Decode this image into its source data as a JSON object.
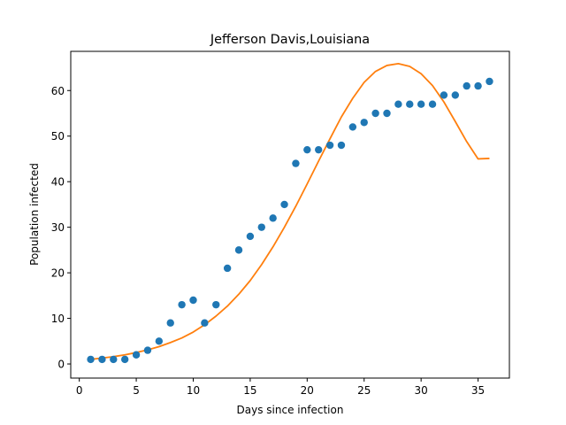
{
  "chart_data": {
    "type": "scatter",
    "title": "Jefferson Davis,Louisiana",
    "xlabel": "Days since infection",
    "ylabel": "Population infected",
    "xlim": [
      -0.75,
      37.75
    ],
    "ylim": [
      -3.1,
      68.6
    ],
    "xticks": [
      0,
      5,
      10,
      15,
      20,
      25,
      30,
      35
    ],
    "yticks": [
      0,
      10,
      20,
      30,
      40,
      50,
      60
    ],
    "grid": false,
    "series": [
      {
        "kind": "scatter",
        "color": "#1f77b4",
        "x": [
          1,
          2,
          3,
          4,
          5,
          6,
          7,
          8,
          9,
          10,
          11,
          12,
          13,
          14,
          15,
          16,
          17,
          18,
          19,
          20,
          21,
          22,
          23,
          24,
          25,
          26,
          27,
          28,
          29,
          30,
          31,
          32,
          33,
          34,
          35,
          36
        ],
        "y": [
          1,
          1,
          1,
          1,
          2,
          3,
          5,
          9,
          13,
          14,
          9,
          13,
          21,
          25,
          28,
          30,
          32,
          35,
          44,
          47,
          47,
          48,
          48,
          52,
          53,
          55,
          55,
          57,
          57,
          57,
          57,
          59,
          59,
          61,
          61,
          62
        ]
      },
      {
        "kind": "line",
        "color": "#ff7f0e",
        "x": [
          1,
          2,
          3,
          4,
          5,
          6,
          7,
          8,
          9,
          10,
          11,
          12,
          13,
          14,
          15,
          16,
          17,
          18,
          19,
          20,
          21,
          22,
          23,
          24,
          25,
          26,
          27,
          28,
          29,
          30,
          31,
          32,
          33,
          34,
          35,
          36
        ],
        "y": [
          1.0,
          1.3,
          1.6,
          2.0,
          2.5,
          3.1,
          3.8,
          4.7,
          5.7,
          7.0,
          8.6,
          10.5,
          12.7,
          15.3,
          18.3,
          21.8,
          25.7,
          30.0,
          34.6,
          39.5,
          44.5,
          49.4,
          54.2,
          58.3,
          61.8,
          64.2,
          65.5,
          65.9,
          65.3,
          63.7,
          61.1,
          57.5,
          53.2,
          48.8,
          45.0,
          45.1
        ]
      }
    ]
  }
}
